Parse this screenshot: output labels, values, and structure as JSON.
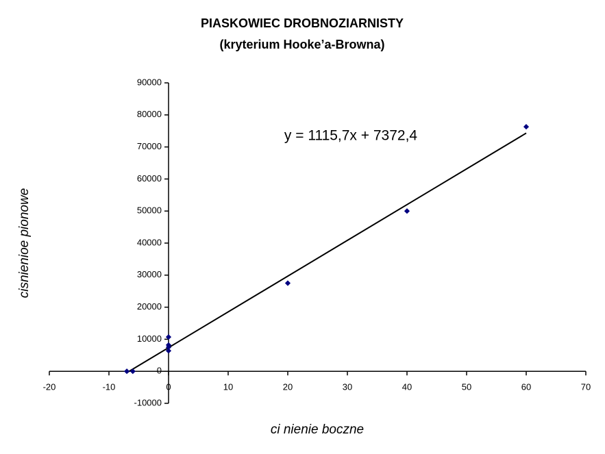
{
  "chart_data": {
    "type": "scatter",
    "title": "PIASKOWIEC DROBNOZIARNISTY",
    "subtitle": "(kryterium Hooke’a-Browna)",
    "x_label": "ci  nienie boczne",
    "y_label": "cisnienioe pionowe",
    "x": [
      -7,
      -6,
      0,
      0,
      0,
      0,
      20,
      40,
      60
    ],
    "values": [
      0,
      0,
      10700,
      8200,
      7500,
      6400,
      27500,
      50000,
      76300
    ],
    "color": "#000080",
    "xlim": [
      -20,
      70
    ],
    "xticks": [
      -20,
      -10,
      0,
      10,
      20,
      30,
      40,
      50,
      60,
      70
    ],
    "ylim": [
      -10000,
      90000
    ],
    "yticks": [
      -10000,
      0,
      10000,
      20000,
      30000,
      40000,
      50000,
      60000,
      70000,
      80000,
      90000
    ],
    "trendline": {
      "label": "y = 1115,7x + 7372,4",
      "slope": 1115.7,
      "intercept": 7372.4
    }
  }
}
